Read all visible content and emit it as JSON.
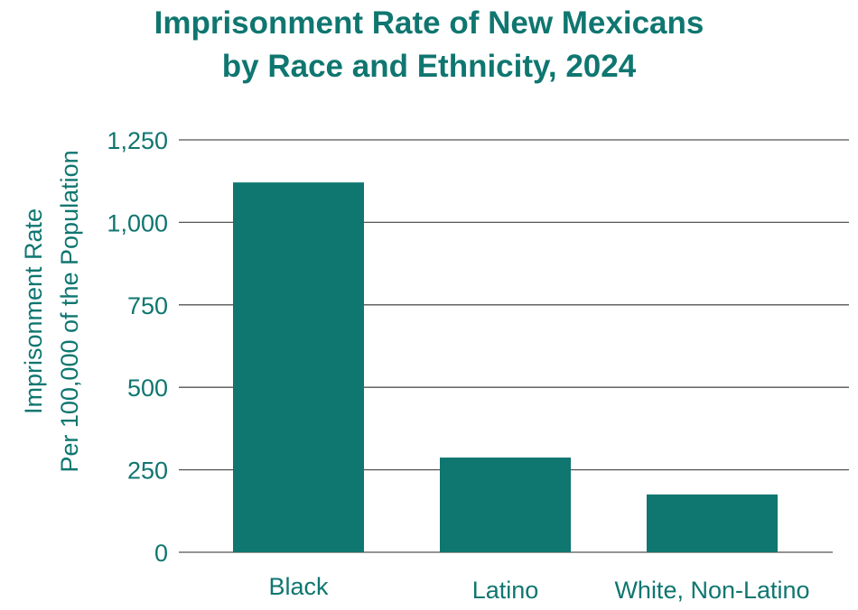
{
  "chart_data": {
    "type": "bar",
    "title": [
      "Imprisonment Rate of New Mexicans",
      "by Race and Ethnicity, 2024"
    ],
    "xlabel": "",
    "ylabel": [
      "Imprisonment Rate",
      "Per 100,000 of the Population"
    ],
    "categories": [
      "Black",
      "Latino",
      "White, Non-Latino"
    ],
    "values": [
      1121,
      287,
      175
    ],
    "ylim": [
      0,
      1250
    ],
    "yticks": [
      0,
      250,
      500,
      750,
      1000,
      1250
    ],
    "ytick_labels": [
      "0",
      "250",
      "500",
      "750",
      "1,000",
      "1,250"
    ],
    "grid": true,
    "legend": "none",
    "colors": {
      "bar": "#0f7670",
      "text": "#0f7670",
      "grid": "#555555"
    }
  }
}
